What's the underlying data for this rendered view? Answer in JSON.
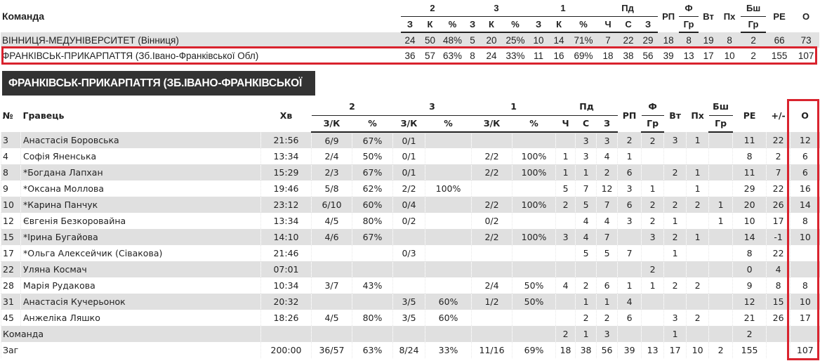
{
  "team_table": {
    "headers": {
      "team": "Команда",
      "groups": [
        "2",
        "3",
        "1",
        "Пд"
      ],
      "sub": [
        "З",
        "К",
        "%",
        "З",
        "К",
        "%",
        "З",
        "К",
        "%",
        "Ч",
        "С",
        "З"
      ],
      "rp": "РП",
      "f": "Ф",
      "f_gr": "Гр",
      "vt": "Вт",
      "px": "Пх",
      "bsh": "Бш",
      "bsh_gr": "Гр",
      "re": "РЕ",
      "o": "О"
    },
    "rows": [
      {
        "name": "ВІННИЦЯ-МЕДУНІВЕРСИТЕТ (Вінниця)",
        "values": [
          "24",
          "50",
          "48%",
          "5",
          "20",
          "25%",
          "10",
          "14",
          "71%",
          "7",
          "22",
          "29",
          "18",
          "8",
          "19",
          "8",
          "2",
          "66",
          "73"
        ]
      },
      {
        "name": "ФРАНКІВСЬК-ПРИКАРПАТТЯ (Зб.Івано-Франківської Обл)",
        "values": [
          "36",
          "57",
          "63%",
          "8",
          "24",
          "33%",
          "11",
          "16",
          "69%",
          "18",
          "38",
          "56",
          "39",
          "13",
          "17",
          "10",
          "2",
          "155",
          "107"
        ],
        "highlighted": true
      }
    ]
  },
  "team_title": "ФРАНКІВСЬК-ПРИКАРПАТТЯ (ЗБ.ІВАНО-ФРАНКІВСЬКОЇ ОБЛ)",
  "player_table": {
    "headers": {
      "num": "№",
      "player": "Гравець",
      "min": "Хв",
      "groups": [
        "2",
        "3",
        "1",
        "Пд"
      ],
      "sub": [
        "З/К",
        "%",
        "З/К",
        "%",
        "З/К",
        "%",
        "Ч",
        "С",
        "З"
      ],
      "rp": "РП",
      "f": "Ф",
      "f_gr": "Гр",
      "vt": "Вт",
      "px": "Пх",
      "bsh": "Бш",
      "bsh_gr": "Гр",
      "re": "РЕ",
      "pm": "+/-",
      "o": "О"
    },
    "rows": [
      {
        "num": "3",
        "name": "Анастасія Боровська",
        "values": [
          "21:56",
          "6/9",
          "67%",
          "0/1",
          "",
          "",
          "",
          "",
          "3",
          "3",
          "2",
          "2",
          "3",
          "1",
          "",
          "11",
          "22",
          "12"
        ]
      },
      {
        "num": "4",
        "name": "Софія Яненська",
        "values": [
          "13:34",
          "2/4",
          "50%",
          "0/1",
          "",
          "2/2",
          "100%",
          "1",
          "3",
          "4",
          "1",
          "",
          "",
          "",
          "",
          "8",
          "2",
          "6"
        ]
      },
      {
        "num": "8",
        "name": "*Богдана Лапхан",
        "values": [
          "15:29",
          "2/3",
          "67%",
          "0/1",
          "",
          "2/2",
          "100%",
          "1",
          "1",
          "2",
          "6",
          "",
          "2",
          "1",
          "",
          "11",
          "7",
          "6"
        ]
      },
      {
        "num": "9",
        "name": "*Оксана Моллова",
        "values": [
          "19:46",
          "5/8",
          "62%",
          "2/2",
          "100%",
          "",
          "",
          "5",
          "7",
          "12",
          "3",
          "1",
          "",
          "1",
          "",
          "29",
          "22",
          "16"
        ]
      },
      {
        "num": "10",
        "name": "*Карина Панчук",
        "values": [
          "23:12",
          "6/10",
          "60%",
          "0/4",
          "",
          "2/2",
          "100%",
          "2",
          "5",
          "7",
          "6",
          "2",
          "2",
          "2",
          "1",
          "20",
          "26",
          "14"
        ]
      },
      {
        "num": "12",
        "name": "Євгенія Безкоровайна",
        "values": [
          "13:34",
          "4/5",
          "80%",
          "0/2",
          "",
          "0/2",
          "",
          "",
          "4",
          "4",
          "3",
          "2",
          "1",
          "",
          "1",
          "10",
          "17",
          "8"
        ]
      },
      {
        "num": "15",
        "name": "*Ірина Бугайова",
        "values": [
          "14:10",
          "4/6",
          "67%",
          "",
          "",
          "2/2",
          "100%",
          "3",
          "4",
          "7",
          "",
          "3",
          "2",
          "1",
          "",
          "14",
          "-1",
          "10"
        ]
      },
      {
        "num": "17",
        "name": "*Ольга Алексейчик (Сівакова)",
        "values": [
          "21:46",
          "",
          "",
          "0/3",
          "",
          "",
          "",
          "",
          "5",
          "5",
          "7",
          "",
          "1",
          "",
          "",
          "8",
          "22",
          ""
        ]
      },
      {
        "num": "22",
        "name": "Уляна Космач",
        "values": [
          "07:01",
          "",
          "",
          "",
          "",
          "",
          "",
          "",
          "",
          "",
          "",
          "2",
          "",
          "",
          "",
          "0",
          "4",
          ""
        ]
      },
      {
        "num": "28",
        "name": "Марія Рудакова",
        "values": [
          "10:34",
          "3/7",
          "43%",
          "",
          "",
          "2/4",
          "50%",
          "4",
          "2",
          "6",
          "1",
          "1",
          "2",
          "2",
          "",
          "9",
          "8",
          "8"
        ]
      },
      {
        "num": "31",
        "name": "Анастасія Кучерьонок",
        "values": [
          "20:32",
          "",
          "",
          "3/5",
          "60%",
          "1/2",
          "50%",
          "",
          "1",
          "1",
          "4",
          "",
          "",
          "",
          "",
          "12",
          "15",
          "10"
        ]
      },
      {
        "num": "45",
        "name": "Анжеліка Ляшко",
        "values": [
          "18:26",
          "4/5",
          "80%",
          "3/5",
          "60%",
          "",
          "",
          "",
          "2",
          "2",
          "6",
          "",
          "3",
          "2",
          "",
          "21",
          "26",
          "17"
        ]
      },
      {
        "num": "",
        "name": "Команда",
        "values": [
          "",
          "",
          "",
          "",
          "",
          "",
          "",
          "2",
          "1",
          "3",
          "",
          "",
          "1",
          "",
          "",
          "2",
          "",
          ""
        ]
      },
      {
        "num": "",
        "name": "Заг",
        "values": [
          "200:00",
          "36/57",
          "63%",
          "8/24",
          "33%",
          "11/16",
          "69%",
          "18",
          "38",
          "56",
          "39",
          "13",
          "17",
          "10",
          "2",
          "155",
          "",
          "107"
        ]
      }
    ]
  },
  "colors": {
    "highlight": "#d9232e",
    "title_bg": "#333333",
    "stripe": "#e0e0e0"
  }
}
